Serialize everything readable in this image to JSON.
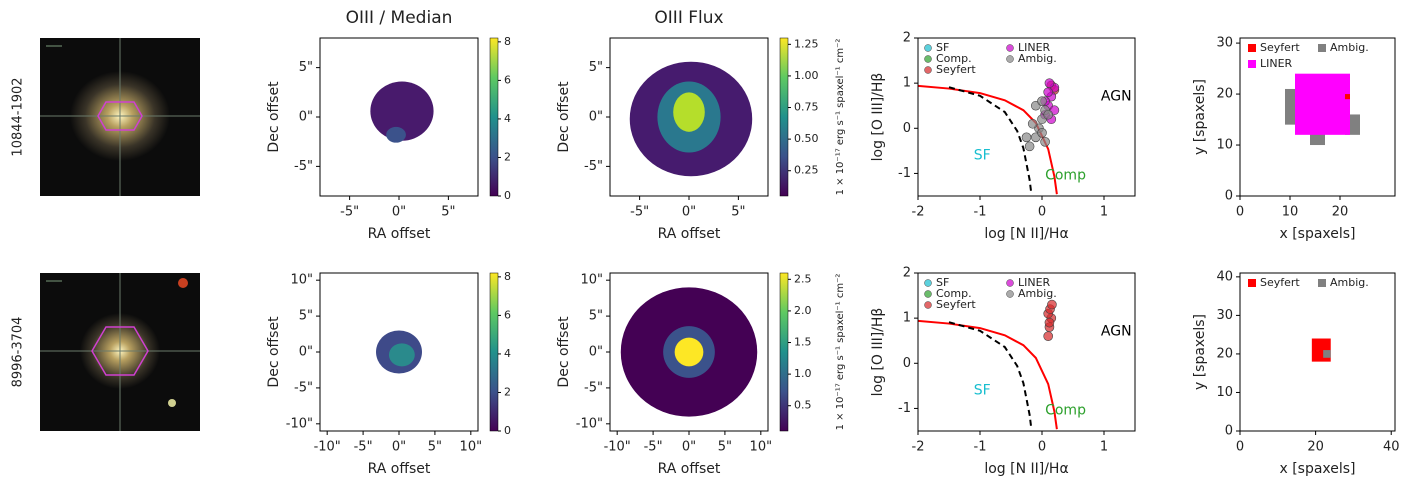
{
  "row_labels": [
    "10844-1902",
    "8996-3704"
  ],
  "chart_data": [
    {
      "type": "heatmap",
      "title": "OIII / Median",
      "xlabel": "RA offset",
      "ylabel": "Dec offset",
      "xlim": [
        -8,
        8
      ],
      "ylim": [
        -8,
        8
      ],
      "xticks": [
        {
          "value": -5,
          "label": "-5\""
        },
        {
          "value": 0,
          "label": "0\""
        },
        {
          "value": 5,
          "label": "5\""
        }
      ],
      "yticks": [
        {
          "value": -5,
          "label": "-5\""
        },
        {
          "value": 0,
          "label": "0\""
        },
        {
          "value": 5,
          "label": "5\""
        }
      ],
      "colorbar": {
        "lim": [
          0,
          8.2
        ],
        "ticks": [
          0,
          2,
          4,
          6,
          8
        ]
      }
    },
    {
      "type": "heatmap",
      "title": "OIII Flux",
      "xlabel": "RA offset",
      "ylabel": "Dec offset",
      "xlim": [
        -8,
        8
      ],
      "ylim": [
        -8,
        8
      ],
      "xticks": [
        {
          "value": -5,
          "label": "-5\""
        },
        {
          "value": 0,
          "label": "0\""
        },
        {
          "value": 5,
          "label": "5\""
        }
      ],
      "yticks": [
        {
          "value": -5,
          "label": "-5\""
        },
        {
          "value": 0,
          "label": "0\""
        },
        {
          "value": 5,
          "label": "5\""
        }
      ],
      "colorbar": {
        "label": "1 × 10⁻¹⁷ erg s⁻¹ spaxel⁻¹ cm⁻²",
        "lim": [
          0.05,
          1.3
        ],
        "ticks": [
          0.25,
          {
            "value": 0.5,
            "label": "0.50"
          },
          0.75,
          {
            "value": 1,
            "label": "1.00"
          },
          1.25
        ]
      }
    },
    {
      "type": "scatter",
      "xlabel": "log [N II]/Hα",
      "ylabel": "log [O III]/Hβ",
      "xlim": [
        -2,
        1.5
      ],
      "ylim": [
        -1.5,
        2
      ],
      "xticks": [
        -2,
        -1,
        0,
        1
      ],
      "yticks": [
        -1,
        0,
        1,
        2
      ],
      "annotations": [
        {
          "text": "AGN",
          "color": "#000000"
        },
        {
          "text": "SF",
          "color": "#17becf"
        },
        {
          "text": "Comp",
          "color": "#2ca02c"
        }
      ],
      "lines": [
        {
          "color": "#ff0000",
          "dash": false,
          "x": [
            -2,
            -1.5,
            -1,
            -0.6,
            -0.3,
            -0.1,
            0.1,
            0.2,
            0.24
          ],
          "y": [
            0.94,
            0.88,
            0.78,
            0.62,
            0.4,
            0.12,
            -0.46,
            -1.07,
            -1.46
          ]
        },
        {
          "color": "#000000",
          "dash": true,
          "x": [
            -1.5,
            -1,
            -0.6,
            -0.4,
            -0.3,
            -0.2,
            -0.17
          ],
          "y": [
            0.91,
            0.72,
            0.36,
            -0.06,
            -0.44,
            -1.14,
            -1.47
          ]
        }
      ],
      "series": [
        {
          "name": "SF",
          "color": "#17becf",
          "x": [],
          "y": []
        },
        {
          "name": "Comp.",
          "color": "#2ca02c",
          "x": [],
          "y": []
        },
        {
          "name": "Seyfert",
          "color": "#d62728",
          "x": [
            0.15,
            0.2
          ],
          "y": [
            0.95,
            0.85
          ]
        },
        {
          "name": "LINER",
          "color": "#cc00cc",
          "x": [
            0.05,
            0.1,
            0.15,
            0.2,
            0.1,
            0.15,
            0.05,
            0.2,
            0.12
          ],
          "y": [
            0.3,
            0.5,
            0.7,
            0.9,
            0.8,
            0.2,
            0.6,
            0.4,
            1.0
          ]
        },
        {
          "name": "Ambig.",
          "color": "#888888",
          "x": [
            -0.2,
            -0.1,
            -0.05,
            0,
            0.05,
            -0.15,
            0,
            0.1,
            -0.1,
            0.05,
            -0.25,
            0
          ],
          "y": [
            -0.4,
            -0.2,
            0,
            0.2,
            0.4,
            0.1,
            -0.1,
            0.3,
            0.5,
            -0.3,
            -0.2,
            0.6
          ]
        }
      ]
    },
    {
      "type": "classmap",
      "xlabel": "x [spaxels]",
      "ylabel": "y [spaxels]",
      "xlim": [
        0,
        31
      ],
      "ylim": [
        0,
        31
      ],
      "xticks": [
        0,
        10,
        20
      ],
      "yticks": [
        0,
        10,
        20,
        30
      ],
      "series": [
        {
          "name": "Seyfert",
          "color": "#ff0000"
        },
        {
          "name": "Ambig.",
          "color": "#808080"
        },
        {
          "name": "LINER",
          "color": "#ff00ff"
        }
      ]
    },
    {
      "type": "heatmap",
      "xlabel": "RA offset",
      "ylabel": "Dec offset",
      "xlim": [
        -11,
        11
      ],
      "ylim": [
        -11,
        11
      ],
      "xticks": [
        {
          "value": -10,
          "label": "-10\""
        },
        {
          "value": -5,
          "label": "-5\""
        },
        {
          "value": 0,
          "label": "0\""
        },
        {
          "value": 5,
          "label": "5\""
        },
        {
          "value": 10,
          "label": "10\""
        }
      ],
      "yticks": [
        {
          "value": -10,
          "label": "-10\""
        },
        {
          "value": -5,
          "label": "-5\""
        },
        {
          "value": 0,
          "label": "0\""
        },
        {
          "value": 5,
          "label": "5\""
        },
        {
          "value": 10,
          "label": "10\""
        }
      ],
      "colorbar": {
        "lim": [
          0,
          8.2
        ],
        "ticks": [
          0,
          2,
          4,
          6,
          8
        ]
      }
    },
    {
      "type": "heatmap",
      "xlabel": "RA offset",
      "ylabel": "Dec offset",
      "xlim": [
        -11,
        11
      ],
      "ylim": [
        -11,
        11
      ],
      "xticks": [
        {
          "value": -10,
          "label": "-10\""
        },
        {
          "value": -5,
          "label": "-5\""
        },
        {
          "value": 0,
          "label": "0\""
        },
        {
          "value": 5,
          "label": "5\""
        },
        {
          "value": 10,
          "label": "10\""
        }
      ],
      "yticks": [
        {
          "value": -10,
          "label": "-10\""
        },
        {
          "value": -5,
          "label": "-5\""
        },
        {
          "value": 0,
          "label": "0\""
        },
        {
          "value": 5,
          "label": "5\""
        },
        {
          "value": 10,
          "label": "10\""
        }
      ],
      "colorbar": {
        "label": "1 × 10⁻¹⁷ erg s⁻¹ spaxel⁻¹ cm⁻²",
        "lim": [
          0.1,
          2.6
        ],
        "ticks": [
          0.5,
          {
            "value": 1,
            "label": "1.0"
          },
          1.5,
          {
            "value": 2,
            "label": "2.0"
          },
          2.5
        ]
      }
    },
    {
      "type": "scatter",
      "xlabel": "log [N II]/Hα",
      "ylabel": "log [O III]/Hβ",
      "xlim": [
        -2,
        1.5
      ],
      "ylim": [
        -1.5,
        2
      ],
      "xticks": [
        -2,
        -1,
        0,
        1
      ],
      "yticks": [
        -1,
        0,
        1,
        2
      ],
      "annotations": [
        {
          "text": "AGN",
          "color": "#000000"
        },
        {
          "text": "SF",
          "color": "#17becf"
        },
        {
          "text": "Comp",
          "color": "#2ca02c"
        }
      ],
      "lines": [
        {
          "color": "#ff0000",
          "dash": false,
          "x": [
            -2,
            -1.5,
            -1,
            -0.6,
            -0.3,
            -0.1,
            0.1,
            0.2,
            0.24
          ],
          "y": [
            0.94,
            0.88,
            0.78,
            0.62,
            0.4,
            0.12,
            -0.46,
            -1.07,
            -1.46
          ]
        },
        {
          "color": "#000000",
          "dash": true,
          "x": [
            -1.5,
            -1,
            -0.6,
            -0.4,
            -0.3,
            -0.2,
            -0.17
          ],
          "y": [
            0.91,
            0.72,
            0.36,
            -0.06,
            -0.44,
            -1.14,
            -1.47
          ]
        }
      ],
      "series": [
        {
          "name": "SF",
          "color": "#17becf",
          "x": [],
          "y": []
        },
        {
          "name": "Comp.",
          "color": "#2ca02c",
          "x": [],
          "y": []
        },
        {
          "name": "Seyfert",
          "color": "#d62728",
          "x": [
            0.1,
            0.12,
            0.15,
            0.1,
            0.13,
            0.16,
            0.12
          ],
          "y": [
            0.6,
            0.8,
            1.0,
            1.1,
            1.2,
            1.3,
            0.9
          ]
        },
        {
          "name": "LINER",
          "color": "#cc00cc",
          "x": [],
          "y": []
        },
        {
          "name": "Ambig.",
          "color": "#888888",
          "x": [],
          "y": []
        }
      ]
    },
    {
      "type": "classmap",
      "xlabel": "x [spaxels]",
      "ylabel": "y [spaxels]",
      "xlim": [
        0,
        41
      ],
      "ylim": [
        0,
        41
      ],
      "xticks": [
        0,
        20,
        40
      ],
      "yticks": [
        0,
        10,
        20,
        30,
        40
      ],
      "series": [
        {
          "name": "Seyfert",
          "color": "#ff0000"
        },
        {
          "name": "Ambig.",
          "color": "#808080"
        }
      ]
    }
  ]
}
